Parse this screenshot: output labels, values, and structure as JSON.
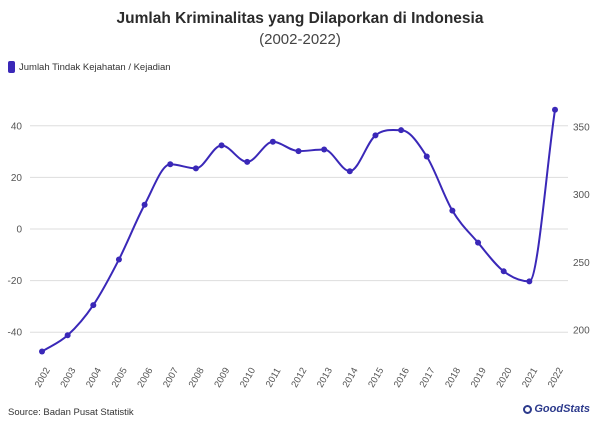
{
  "chart_data": {
    "type": "line",
    "title": "Jumlah Kriminalitas yang Dilaporkan di Indonesia",
    "subtitle": "(2002-2022)",
    "source": "Source: Badan Pusat Statistik",
    "brand": "GoodStats",
    "colors": {
      "line": "#3a28b8",
      "grid": "#dddddd",
      "axis_text": "#555555"
    },
    "x": [
      "2002",
      "2003",
      "2004",
      "2005",
      "2006",
      "2007",
      "2008",
      "2009",
      "2010",
      "2011",
      "2012",
      "2013",
      "2014",
      "2015",
      "2016",
      "2017",
      "2018",
      "2019",
      "2020",
      "2021",
      "2022"
    ],
    "series": [
      {
        "name": "Jumlah Tindak Kejahatan / Kejadian",
        "axis": "left",
        "values": [
          -47.5,
          -41.2,
          -29.5,
          -11.8,
          9.4,
          25.1,
          23.5,
          32.4,
          26.0,
          33.8,
          30.2,
          30.8,
          22.4,
          36.3,
          38.3,
          28.1,
          7.1,
          -5.3,
          -16.4,
          -20.3,
          46.2
        ]
      }
    ],
    "y_left": {
      "ticks": [
        40,
        20,
        0,
        -20,
        -40
      ],
      "lim": [
        -50,
        50
      ]
    },
    "y_right": {
      "ticks": [
        350,
        300,
        250,
        200
      ]
    },
    "grid": true,
    "legend_position": "top-left"
  }
}
